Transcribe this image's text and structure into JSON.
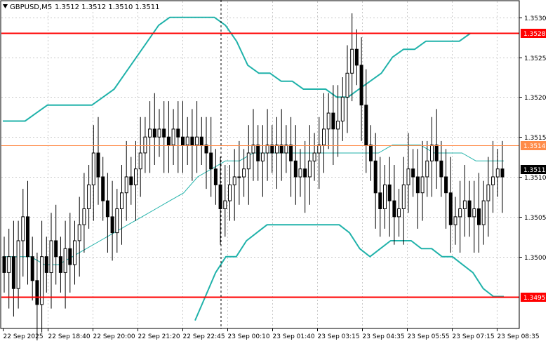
{
  "header": {
    "symbol_label": "GBPUSD,M5",
    "ohlc_label": "1.3512 1.3512 1.3510 1.3511",
    "menu_icon": "triangle-down-icon"
  },
  "colors": {
    "background": "#ffffff",
    "grid": "#c8c8c8",
    "frame": "#000000",
    "candles": "#000000",
    "bollinger": "#20b2aa",
    "moving_average": "#20b2aa",
    "resistance": "#ff0000",
    "support": "#ff0000",
    "mid_level": "#ff8c4a",
    "price_tag": "#000000"
  },
  "chart_data": {
    "type": "candlestick",
    "symbol": "GBPUSD",
    "timeframe": "M5",
    "ylim": [
      1.3491,
      1.3532
    ],
    "grid": true,
    "y_ticks": [
      "1.3530",
      "1.3525",
      "1.3520",
      "1.3515",
      "1.3510",
      "1.3505",
      "1.3500"
    ],
    "x_ticks": [
      "22 Sep 2025",
      "22 Sep 18:40",
      "22 Sep 20:00",
      "22 Sep 21:20",
      "22 Sep 22:45",
      "23 Sep 00:10",
      "23 Sep 01:40",
      "23 Sep 03:15",
      "23 Sep 04:35",
      "23 Sep 05:55",
      "23 Sep 07:15",
      "23 Sep 08:35"
    ],
    "price_levels": [
      {
        "label": "1.3528",
        "value": 1.3528,
        "style": "resistance"
      },
      {
        "label": "1.3514",
        "value": 1.3514,
        "style": "mid"
      },
      {
        "label": "1.3511",
        "value": 1.3511,
        "style": "current"
      },
      {
        "label": "1.3495",
        "value": 1.3495,
        "style": "support"
      }
    ],
    "closes": [
      1.3498,
      1.35,
      1.3496,
      1.3502,
      1.3505,
      1.35,
      1.3497,
      1.3494,
      1.35,
      1.3498,
      1.3502,
      1.35,
      1.3498,
      1.3501,
      1.3499,
      1.3502,
      1.3504,
      1.3506,
      1.3509,
      1.3513,
      1.351,
      1.3507,
      1.3505,
      1.3503,
      1.3506,
      1.3508,
      1.351,
      1.3509,
      1.3511,
      1.3513,
      1.3515,
      1.3516,
      1.3515,
      1.3516,
      1.3515,
      1.3514,
      1.3516,
      1.3515,
      1.3514,
      1.3515,
      1.3514,
      1.3515,
      1.3514,
      1.3513,
      1.3511,
      1.3509,
      1.3506,
      1.3507,
      1.3509,
      1.351,
      1.351,
      1.3511,
      1.3513,
      1.3514,
      1.3512,
      1.3513,
      1.3514,
      1.3513,
      1.3514,
      1.3513,
      1.3514,
      1.3512,
      1.351,
      1.3511,
      1.351,
      1.3512,
      1.3513,
      1.3514,
      1.3516,
      1.3518,
      1.3516,
      1.3517,
      1.352,
      1.3523,
      1.3526,
      1.3524,
      1.3519,
      1.3514,
      1.3512,
      1.3508,
      1.3506,
      1.3509,
      1.3507,
      1.3505,
      1.3506,
      1.3509,
      1.3511,
      1.351,
      1.3508,
      1.351,
      1.3512,
      1.3514,
      1.3512,
      1.351,
      1.3508,
      1.3504,
      1.3505,
      1.3506,
      1.3507,
      1.3505,
      1.3506,
      1.3504,
      1.3507,
      1.3509,
      1.351,
      1.3511,
      1.351
    ],
    "upper_band": [
      1.3517,
      1.3517,
      1.3517,
      1.3518,
      1.3519,
      1.3519,
      1.3519,
      1.3519,
      1.3519,
      1.352,
      1.3521,
      1.3523,
      1.3525,
      1.3527,
      1.3529,
      1.353,
      1.353,
      1.353,
      1.353,
      1.353,
      1.3529,
      1.3527,
      1.3524,
      1.3523,
      1.3523,
      1.3522,
      1.3522,
      1.3521,
      1.3521,
      1.3521,
      1.352,
      1.352,
      1.3521,
      1.3522,
      1.3523,
      1.3525,
      1.3526,
      1.3526,
      1.3527,
      1.3527,
      1.3527,
      1.3527,
      1.3528,
      1.3528,
      1.3528,
      1.3528
    ],
    "lower_band": [
      1.3492,
      1.3495,
      1.3498,
      1.35,
      1.35,
      1.3502,
      1.3503,
      1.3504,
      1.3504,
      1.3504,
      1.3504,
      1.3504,
      1.3504,
      1.3504,
      1.3504,
      1.3503,
      1.3501,
      1.35,
      1.3501,
      1.3502,
      1.3502,
      1.3502,
      1.3501,
      1.3501,
      1.35,
      1.35,
      1.3499,
      1.3498,
      1.3496,
      1.3495,
      1.3495
    ],
    "moving_average": [
      1.35,
      1.35,
      1.35,
      1.3499,
      1.3499,
      1.35,
      1.3501,
      1.3502,
      1.3503,
      1.3504,
      1.3505,
      1.3506,
      1.3507,
      1.3508,
      1.351,
      1.3511,
      1.3512,
      1.3512,
      1.3513,
      1.3513,
      1.3513,
      1.3513,
      1.3513,
      1.3513,
      1.3513,
      1.3513,
      1.3513,
      1.3513,
      1.3514,
      1.3514,
      1.3514,
      1.3513,
      1.3513,
      1.3513,
      1.3512,
      1.3512,
      1.3512
    ]
  }
}
